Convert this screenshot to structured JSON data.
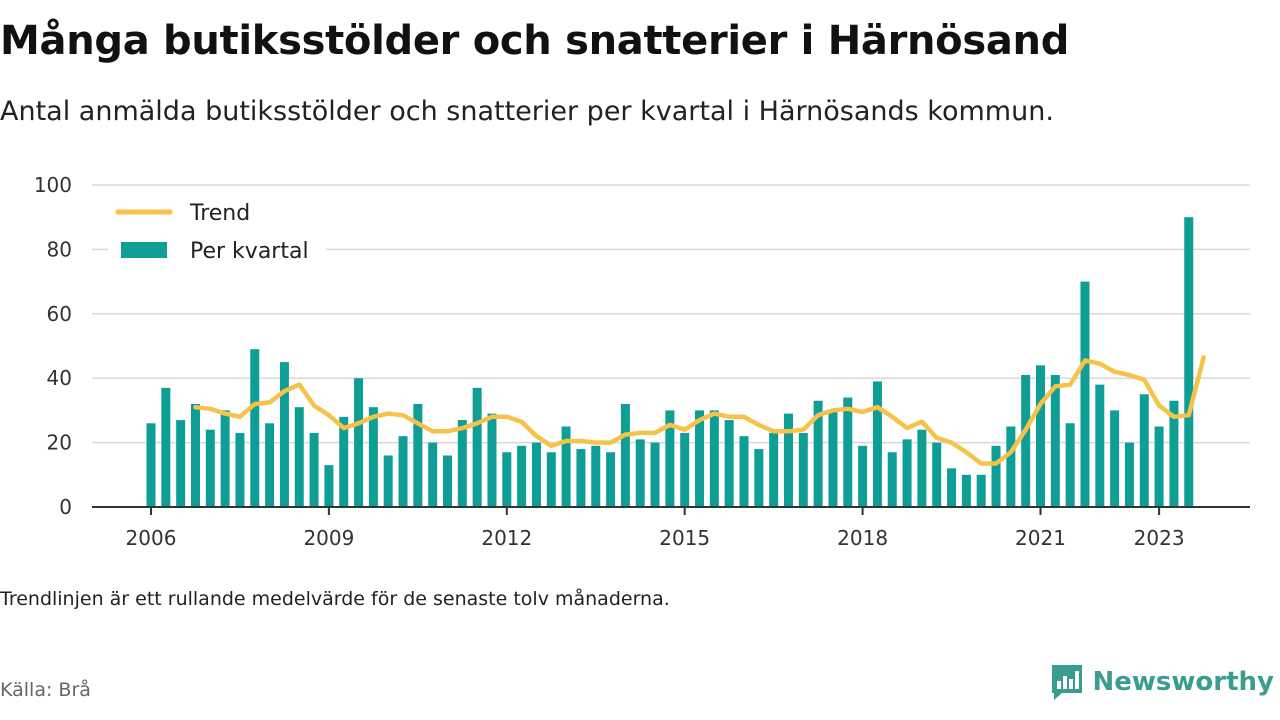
{
  "header": {
    "title": "Många butiksstölder och snatterier i Härnösand",
    "subtitle": "Antal anmälda butiksstölder och snatterier per kvartal i Härnösands kommun."
  },
  "footer": {
    "note": "Trendlinjen är ett rullande medelvärde för de senaste tolv månaderna.",
    "source": "Källa: Brå",
    "brand": "Newsworthy"
  },
  "colors": {
    "bar": "#0f9e95",
    "trend": "#f6c24a",
    "grid": "#d9d9d9",
    "axis": "#333333",
    "brand": "#3a9d8f"
  },
  "chart_data": {
    "type": "bar",
    "x_start": "2006 Q1",
    "frequency": "quarterly",
    "xticks": [
      "2006",
      "2009",
      "2012",
      "2015",
      "2018",
      "2021",
      "2023"
    ],
    "yticks": [
      0,
      20,
      40,
      60,
      80,
      100
    ],
    "ylim": [
      0,
      100
    ],
    "grid": true,
    "legend_position": "top-left",
    "series": [
      {
        "name": "Per kvartal",
        "type": "bar",
        "values": [
          26,
          37,
          27,
          32,
          24,
          30,
          23,
          49,
          26,
          45,
          31,
          23,
          13,
          28,
          40,
          31,
          16,
          22,
          32,
          20,
          16,
          27,
          37,
          29,
          17,
          19,
          20,
          17,
          25,
          18,
          19,
          17,
          32,
          21,
          20,
          30,
          23,
          30,
          30,
          27,
          22,
          18,
          23,
          29,
          23,
          33,
          30,
          34,
          19,
          39,
          17,
          21,
          24,
          20,
          12,
          10,
          10,
          19,
          25,
          41,
          44,
          41,
          26,
          70,
          38,
          30,
          20,
          35,
          25,
          33,
          90
        ]
      },
      {
        "name": "Trend",
        "type": "line",
        "start_index": 3,
        "values": [
          31,
          30.5,
          29,
          28,
          32,
          32.5,
          36,
          38,
          31.5,
          28.5,
          24.5,
          26,
          28,
          29,
          28.5,
          26,
          23.5,
          23.5,
          24.5,
          26,
          28,
          28,
          26.5,
          22,
          19,
          20.5,
          20.5,
          20,
          20,
          22.5,
          23,
          23,
          25.5,
          24,
          27,
          29,
          28,
          28,
          25.5,
          23.5,
          23.5,
          24,
          28.5,
          30,
          30.5,
          29.5,
          31,
          28,
          24.5,
          26.5,
          21.5,
          20,
          17,
          13.5,
          13.5,
          17,
          24,
          32,
          37.5,
          38,
          45.5,
          44.5,
          42,
          41,
          39.5,
          31.5,
          28,
          28.5,
          46.5
        ]
      }
    ]
  }
}
